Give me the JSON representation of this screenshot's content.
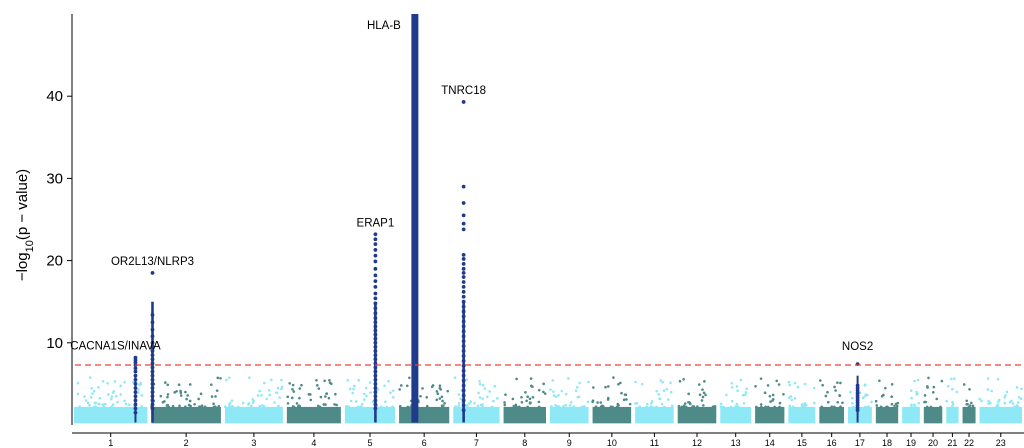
{
  "chart_data": {
    "type": "scatter",
    "ylabel_pre": "−log",
    "ylabel_sub": "10",
    "ylabel_post": "(p − value)",
    "ylim": [
      0,
      50
    ],
    "yticks": [
      10,
      20,
      30,
      40
    ],
    "grid": false,
    "legend": "none",
    "chromosomes": [
      {
        "label": "1",
        "start": 0,
        "end": 1.0
      },
      {
        "label": "2",
        "start": 1.0,
        "end": 1.95
      },
      {
        "label": "3",
        "start": 1.95,
        "end": 2.75
      },
      {
        "label": "4",
        "start": 2.75,
        "end": 3.5
      },
      {
        "label": "5",
        "start": 3.5,
        "end": 4.2
      },
      {
        "label": "6",
        "start": 4.2,
        "end": 4.9
      },
      {
        "label": "7",
        "start": 4.9,
        "end": 5.55
      },
      {
        "label": "8",
        "start": 5.55,
        "end": 6.15
      },
      {
        "label": "9",
        "start": 6.15,
        "end": 6.7
      },
      {
        "label": "10",
        "start": 6.7,
        "end": 7.25
      },
      {
        "label": "11",
        "start": 7.25,
        "end": 7.8
      },
      {
        "label": "12",
        "start": 7.8,
        "end": 8.35
      },
      {
        "label": "13",
        "start": 8.35,
        "end": 8.8
      },
      {
        "label": "14",
        "start": 8.8,
        "end": 9.23
      },
      {
        "label": "15",
        "start": 9.23,
        "end": 9.63
      },
      {
        "label": "16",
        "start": 9.63,
        "end": 10.0
      },
      {
        "label": "17",
        "start": 10.0,
        "end": 10.36
      },
      {
        "label": "18",
        "start": 10.36,
        "end": 10.7
      },
      {
        "label": "19",
        "start": 10.7,
        "end": 10.98
      },
      {
        "label": "20",
        "start": 10.98,
        "end": 11.27
      },
      {
        "label": "21",
        "start": 11.27,
        "end": 11.48
      },
      {
        "label": "22",
        "start": 11.48,
        "end": 11.7
      },
      {
        "label": "23",
        "start": 11.7,
        "end": 12.3
      }
    ],
    "threshold": 7.3,
    "peaks": [
      {
        "gene": "CACNA1S/INAVA",
        "chrom": "1",
        "x": 0.82,
        "max": 8.2,
        "points": [
          8.2,
          7.9,
          7.6,
          7.3,
          6.9,
          6.5,
          6.0,
          5.5,
          5.0,
          4.5,
          4.0,
          3.5,
          3.0,
          2.5,
          2.0,
          1.5
        ]
      },
      {
        "gene": "OR2L13/NLRP3",
        "chrom": "1",
        "x": 1.04,
        "max": 18.5,
        "points": [
          18.5,
          13.4,
          12.5,
          11.6,
          10.8,
          10.0,
          9.5,
          9.0,
          8.5,
          8.0,
          7.5,
          7.0,
          6.5,
          6.0,
          5.5,
          5.0,
          4.5,
          4.0,
          3.5,
          3.0,
          2.5,
          2.0
        ]
      },
      {
        "gene": "ERAP1",
        "chrom": "5",
        "x": 3.92,
        "max": 23.2,
        "points": [
          23.2,
          22.6,
          22.0,
          21.3,
          20.6,
          19.9,
          19.0,
          18.2,
          17.5,
          16.8,
          16.0,
          15.4,
          14.8,
          14.2,
          13.6,
          13.0,
          12.5,
          12.0,
          11.5,
          11.0,
          10.5,
          10.0,
          9.5,
          9.0,
          8.5,
          8.0,
          7.5,
          7.0,
          6.5,
          6.0,
          5.5,
          5.0,
          4.5,
          4.0,
          3.5,
          3.0,
          2.5,
          2.0
        ]
      },
      {
        "gene": "HLA-B",
        "chrom": "6",
        "x": 4.43,
        "max": 50,
        "points": []
      },
      {
        "gene": "TNRC18",
        "chrom": "7",
        "x": 5.06,
        "max": 39.3,
        "points": [
          39.3,
          29.0,
          27.0,
          25.5,
          24.5,
          23.8,
          20.7,
          20.2,
          19.6,
          19.0,
          18.5,
          18.0,
          17.4,
          16.8,
          16.2,
          15.6,
          15.0,
          14.4,
          13.8,
          13.2,
          12.6,
          12.0,
          11.4,
          10.8,
          10.2,
          9.6,
          9.0,
          8.4,
          7.8,
          7.2,
          6.6,
          6.0,
          5.4,
          4.8,
          4.2,
          3.6,
          3.0,
          2.4,
          1.8
        ]
      },
      {
        "gene": "NOS2",
        "chrom": "17",
        "x": 10.15,
        "max": 7.4,
        "points": [
          7.4,
          4.8,
          4.5,
          4.2,
          3.9,
          3.6,
          3.3,
          3.0,
          2.7,
          2.4,
          2.1,
          1.8
        ]
      }
    ],
    "annotations": [
      {
        "text": "CACNA1S/INAVA",
        "peak": 0
      },
      {
        "text": "OR2L13/NLRP3",
        "peak": 1
      },
      {
        "text": "ERAP1",
        "peak": 2
      },
      {
        "text": "HLA-B",
        "peak": 3
      },
      {
        "text": "TNRC18",
        "peak": 4
      },
      {
        "text": "NOS2",
        "peak": 5
      }
    ]
  },
  "colors": {
    "odd_chrom": "#8ee8f5",
    "even_chrom": "#4e8a88",
    "highlight": "#203a8c",
    "threshold": "#ee4433",
    "axis": "#000000"
  }
}
